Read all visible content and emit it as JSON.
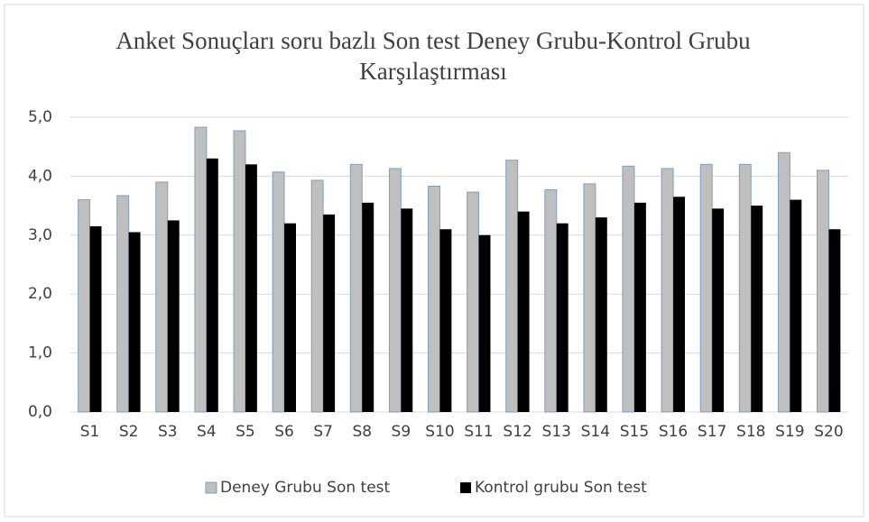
{
  "chart_data": {
    "type": "bar",
    "title": "Anket Sonuçları soru bazlı Son test Deney Grubu-Kontrol Grubu Karşılaştırması",
    "categories": [
      "S1",
      "S2",
      "S3",
      "S4",
      "S5",
      "S6",
      "S7",
      "S8",
      "S9",
      "S10",
      "S11",
      "S12",
      "S13",
      "S14",
      "S15",
      "S16",
      "S17",
      "S18",
      "S19",
      "S20"
    ],
    "series": [
      {
        "name": "Deney Grubu Son test",
        "color": "#bfbfbf",
        "values": [
          3.6,
          3.67,
          3.9,
          4.83,
          4.77,
          4.07,
          3.93,
          4.2,
          4.13,
          3.83,
          3.73,
          4.27,
          3.77,
          3.87,
          4.17,
          4.13,
          4.2,
          4.2,
          4.4,
          4.1
        ]
      },
      {
        "name": "Kontrol grubu Son test",
        "color": "#000000",
        "values": [
          3.15,
          3.05,
          3.25,
          4.3,
          4.2,
          3.2,
          3.35,
          3.55,
          3.45,
          3.1,
          3.0,
          3.4,
          3.2,
          3.3,
          3.55,
          3.65,
          3.45,
          3.5,
          3.6,
          3.1
        ]
      }
    ],
    "ylim": [
      0,
      5
    ],
    "yticks": [
      {
        "value": 0,
        "label": "0,0"
      },
      {
        "value": 1,
        "label": "1,0"
      },
      {
        "value": 2,
        "label": "2,0"
      },
      {
        "value": 3,
        "label": "3,0"
      },
      {
        "value": 4,
        "label": "4,0"
      },
      {
        "value": 5,
        "label": "5,0"
      }
    ],
    "grid": true,
    "legend": "bottom"
  }
}
